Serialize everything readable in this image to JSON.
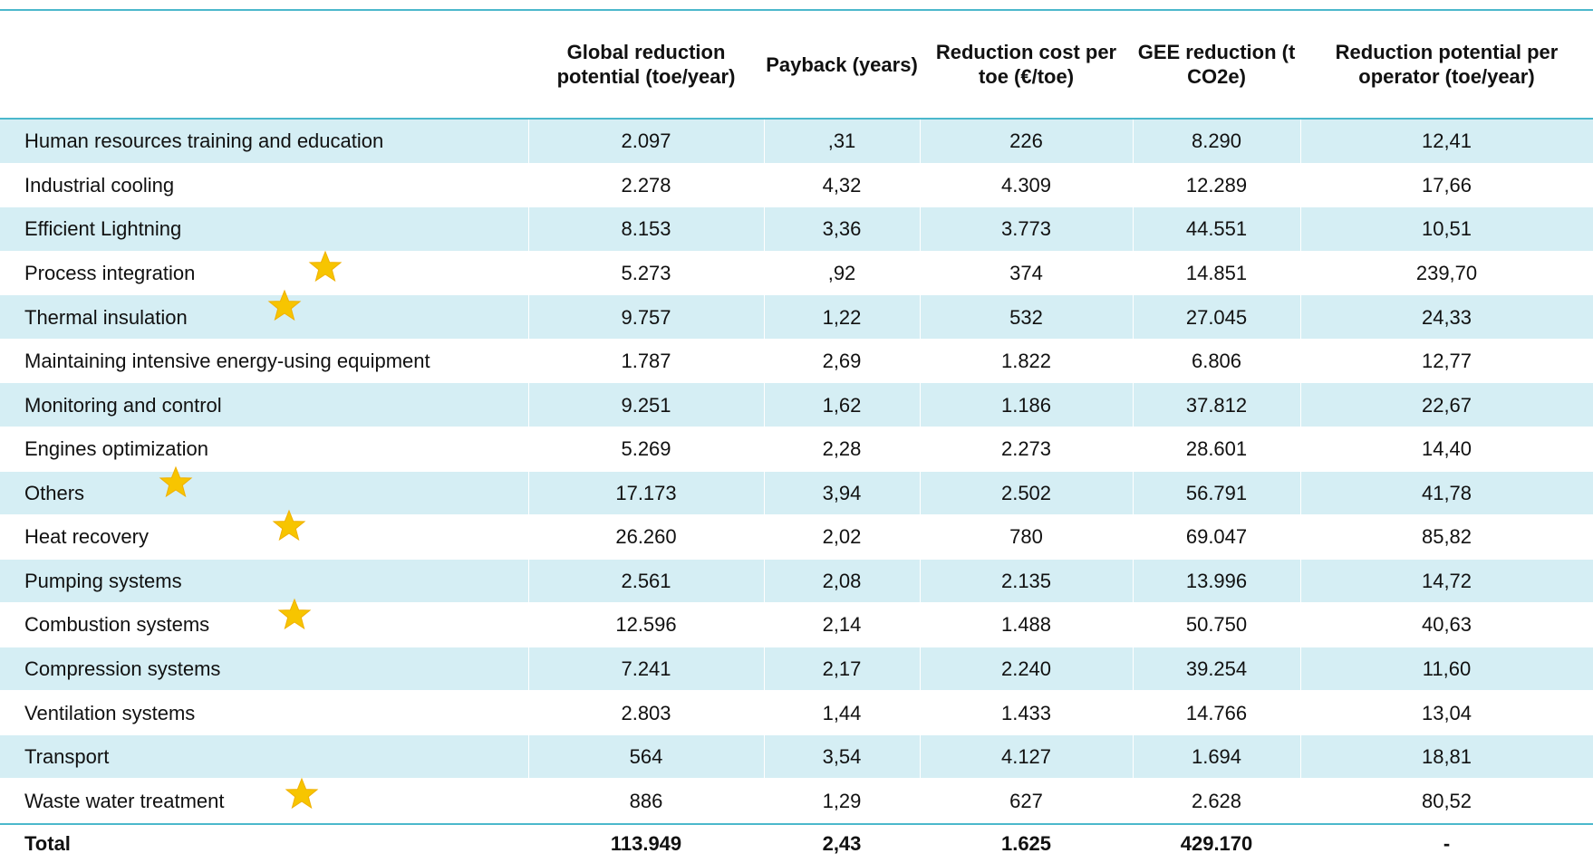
{
  "table": {
    "headers": [
      "Global reduction potential (toe/year)",
      "Payback (years)",
      "Reduction cost per toe  (€/toe)",
      "GEE reduction (t CO2e)",
      "Reduction potential per operator (toe/year)"
    ],
    "rows": [
      [
        "Human resources training and education",
        "2.097",
        ",31",
        "226",
        "8.290",
        "12,41"
      ],
      [
        "Industrial cooling",
        "2.278",
        "4,32",
        "4.309",
        "12.289",
        "17,66"
      ],
      [
        "Efficient Lightning",
        "8.153",
        "3,36",
        "3.773",
        "44.551",
        "10,51"
      ],
      [
        "Process integration",
        "5.273",
        ",92",
        "374",
        "14.851",
        "239,70"
      ],
      [
        "Thermal insulation",
        "9.757",
        "1,22",
        "532",
        "27.045",
        "24,33"
      ],
      [
        "Maintaining intensive energy-using equipment",
        "1.787",
        "2,69",
        "1.822",
        "6.806",
        "12,77"
      ],
      [
        "Monitoring and control",
        "9.251",
        "1,62",
        "1.186",
        "37.812",
        "22,67"
      ],
      [
        "Engines optimization",
        "5.269",
        "2,28",
        "2.273",
        "28.601",
        "14,40"
      ],
      [
        "Others",
        "17.173",
        "3,94",
        "2.502",
        "56.791",
        "41,78"
      ],
      [
        "Heat recovery",
        "26.260",
        "2,02",
        "780",
        "69.047",
        "85,82"
      ],
      [
        "Pumping systems",
        "2.561",
        "2,08",
        "2.135",
        "13.996",
        "14,72"
      ],
      [
        "Combustion systems",
        "12.596",
        "2,14",
        "1.488",
        "50.750",
        "40,63"
      ],
      [
        "Compression systems",
        "7.241",
        "2,17",
        "2.240",
        "39.254",
        "11,60"
      ],
      [
        "Ventilation systems",
        "2.803",
        "1,44",
        "1.433",
        "14.766",
        "13,04"
      ],
      [
        "Transport",
        "564",
        "3,54",
        "4.127",
        "1.694",
        "18,81"
      ],
      [
        "Waste water treatment",
        "886",
        "1,29",
        "627",
        "2.628",
        "80,52"
      ]
    ],
    "total": [
      "Total",
      "113.949",
      "2,43",
      "1.625",
      "429.170",
      "-"
    ]
  }
}
